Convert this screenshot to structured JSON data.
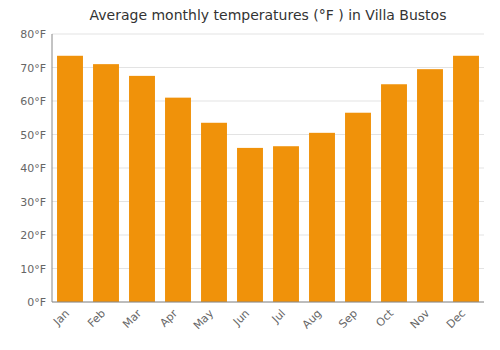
{
  "chart_data": {
    "type": "bar",
    "title": "Average monthly temperatures (°F ) in Villa Bustos",
    "categories": [
      "Jan",
      "Feb",
      "Mar",
      "Apr",
      "May",
      "Jun",
      "Jul",
      "Aug",
      "Sep",
      "Oct",
      "Nov",
      "Dec"
    ],
    "values": [
      73.5,
      71.0,
      67.5,
      61.0,
      53.5,
      46.0,
      46.5,
      50.5,
      56.5,
      65.0,
      69.5,
      73.5
    ],
    "color": "#F0920A",
    "ylim": [
      0,
      80
    ],
    "yticks": [
      {
        "value": 0,
        "label": "0°F"
      },
      {
        "value": 10,
        "label": "10°F"
      },
      {
        "value": 20,
        "label": "20°F"
      },
      {
        "value": 30,
        "label": "30°F"
      },
      {
        "value": 40,
        "label": "40°F"
      },
      {
        "value": 50,
        "label": "50°F"
      },
      {
        "value": 60,
        "label": "60°F"
      },
      {
        "value": 70,
        "label": "70°F"
      },
      {
        "value": 80,
        "label": "80°F"
      }
    ],
    "grid": true
  }
}
